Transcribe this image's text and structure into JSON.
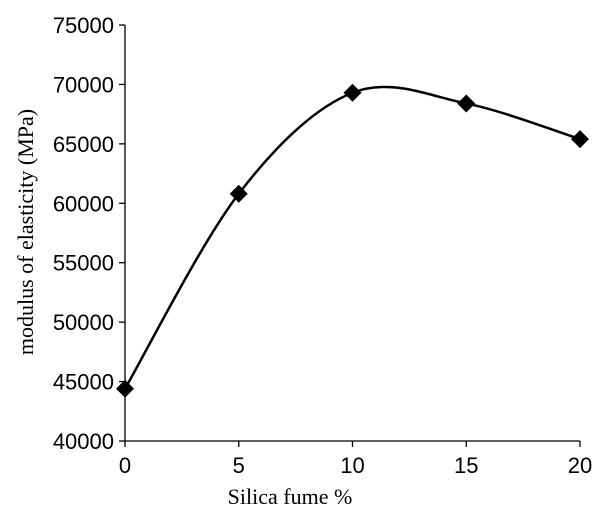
{
  "chart_data": {
    "type": "scatter",
    "title": "",
    "xlabel": "Silica fume %",
    "ylabel": "modulus of elasticity (MPa)",
    "xlim": [
      0,
      20
    ],
    "ylim": [
      40000,
      75000
    ],
    "xticks": [
      0,
      5,
      10,
      15,
      20
    ],
    "yticks": [
      40000,
      45000,
      50000,
      55000,
      60000,
      65000,
      70000,
      75000
    ],
    "grid": false,
    "legend": "none",
    "line_style": "smooth",
    "marker": "diamond",
    "color": "#000000",
    "series": [
      {
        "x": [
          0,
          5,
          10,
          15,
          20
        ],
        "y": [
          44400,
          60800,
          69300,
          68400,
          65400
        ]
      }
    ]
  }
}
